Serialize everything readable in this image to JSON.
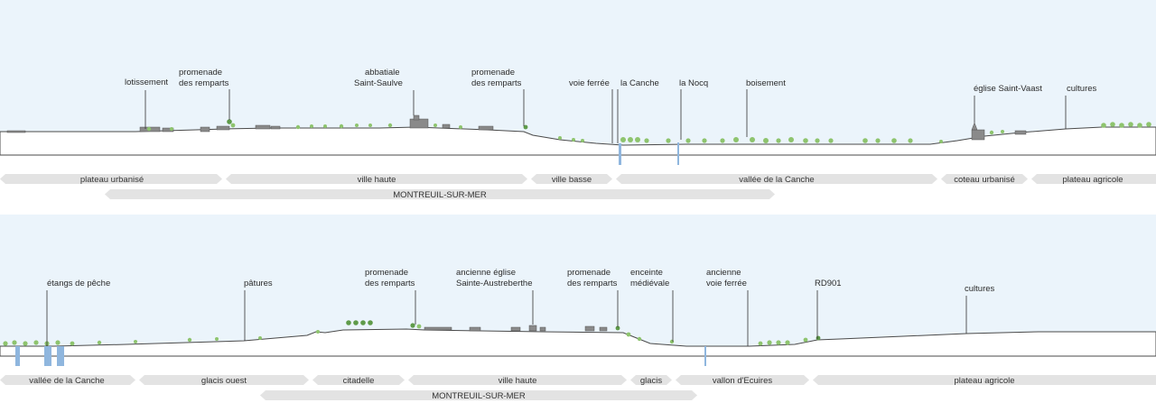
{
  "colors": {
    "sky": "#ebf4fb",
    "band": "#e3e3e3",
    "water": "#8fb6de",
    "vegetation": "#8ec46e",
    "text": "#2b2b2b"
  },
  "top": {
    "annotations": [
      {
        "line1": "lotissement",
        "line2": ""
      },
      {
        "line1": "promenade",
        "line2": "des remparts"
      },
      {
        "line1": "abbatiale",
        "line2": "Saint-Saulve"
      },
      {
        "line1": "promenade",
        "line2": "des remparts"
      },
      {
        "line1": "voie ferrée",
        "line2": ""
      },
      {
        "line1": "la Canche",
        "line2": ""
      },
      {
        "line1": "la Nocq",
        "line2": ""
      },
      {
        "line1": "boisement",
        "line2": ""
      },
      {
        "line1": "église Saint-Vaast",
        "line2": ""
      },
      {
        "line1": "cultures",
        "line2": ""
      }
    ],
    "zones": [
      "plateau urbanisé",
      "ville haute",
      "ville basse",
      "vallée de la Canche",
      "coteau urbanisé",
      "plateau agricole"
    ],
    "town": "MONTREUIL-SUR-MER"
  },
  "bottom": {
    "annotations": [
      {
        "line1": "étangs de pêche",
        "line2": ""
      },
      {
        "line1": "pâtures",
        "line2": ""
      },
      {
        "line1": "promenade",
        "line2": "des remparts"
      },
      {
        "line1": "ancienne église",
        "line2": "Sainte-Austreberthe"
      },
      {
        "line1": "promenade",
        "line2": "des remparts"
      },
      {
        "line1": "enceinte",
        "line2": "médiévale"
      },
      {
        "line1": "ancienne",
        "line2": "voie ferrée"
      },
      {
        "line1": "RD901",
        "line2": ""
      },
      {
        "line1": "cultures",
        "line2": ""
      }
    ],
    "zones": [
      "vallée de la Canche",
      "glacis ouest",
      "citadelle",
      "ville haute",
      "glacis",
      "vallon d'Ecuires",
      "plateau agricole"
    ],
    "town": "MONTREUIL-SUR-MER"
  }
}
